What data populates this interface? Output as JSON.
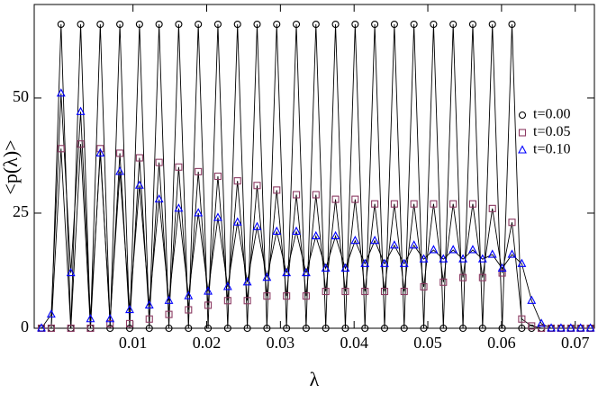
{
  "chart_data": {
    "type": "line",
    "x_label": "λ",
    "y_label": "<p(λ)>",
    "xlim": [
      -0.0034,
      0.0726
    ],
    "ylim": [
      0,
      70.3
    ],
    "xticks": [
      0.01,
      0.02,
      0.03,
      0.04,
      0.05,
      0.06,
      0.07
    ],
    "yticks": [
      0,
      25,
      50
    ],
    "legend": "right",
    "x": [
      -0.00242,
      -0.00109,
      0.00024,
      0.00157,
      0.0029,
      0.00423,
      0.00556,
      0.00689,
      0.00822,
      0.00955,
      0.01088,
      0.01221,
      0.01354,
      0.01487,
      0.0162,
      0.01753,
      0.01886,
      0.02019,
      0.02152,
      0.02285,
      0.02418,
      0.02551,
      0.02684,
      0.02817,
      0.0295,
      0.03083,
      0.03216,
      0.03349,
      0.03482,
      0.03615,
      0.03748,
      0.03881,
      0.04014,
      0.04147,
      0.0428,
      0.04413,
      0.04546,
      0.04679,
      0.04812,
      0.04945,
      0.05078,
      0.05211,
      0.05344,
      0.05477,
      0.0561,
      0.05743,
      0.05876,
      0.06009,
      0.06142,
      0.06275,
      0.06408,
      0.06541,
      0.06674,
      0.06807,
      0.0694,
      0.07073,
      0.07206
    ],
    "series": [
      {
        "name": "t=0.00",
        "color": "#000000",
        "marker": "circle",
        "values": [
          0,
          0,
          66,
          0,
          66,
          0,
          66,
          0,
          66,
          0,
          66,
          0,
          66,
          0,
          66,
          0,
          66,
          0,
          66,
          0,
          66,
          0,
          66,
          0,
          66,
          0,
          66,
          0,
          66,
          0,
          66,
          0,
          66,
          0,
          66,
          0,
          66,
          0,
          66,
          0,
          66,
          0,
          66,
          0,
          66,
          0,
          66,
          0,
          66,
          0,
          0,
          0,
          0,
          0,
          0,
          0,
          0
        ]
      },
      {
        "name": "t=0.05",
        "color": "#8b3a62",
        "marker": "square",
        "values": [
          0,
          0,
          39,
          0,
          40,
          0,
          39,
          1,
          38,
          1,
          37,
          2,
          36,
          3,
          35,
          4,
          34,
          5,
          33,
          6,
          32,
          6,
          31,
          7,
          30,
          7,
          29,
          7,
          29,
          8,
          28,
          8,
          28,
          8,
          27,
          8,
          27,
          8,
          27,
          9,
          27,
          10,
          27,
          11,
          27,
          11,
          26,
          12,
          23,
          2,
          0.5,
          0,
          0,
          0,
          0,
          0,
          0
        ]
      },
      {
        "name": "t=0.10",
        "color": "#0000ff",
        "marker": "triangle",
        "values": [
          0,
          3,
          51,
          12,
          47,
          2,
          38,
          2,
          34,
          4,
          31,
          5,
          28,
          6,
          26,
          7,
          25,
          8,
          24,
          9,
          23,
          10,
          22,
          11,
          21,
          12,
          21,
          12,
          20,
          13,
          20,
          13,
          19,
          14,
          19,
          14,
          18,
          14,
          18,
          15,
          17,
          15,
          17,
          15,
          17,
          15,
          16,
          13,
          16,
          14,
          6,
          1,
          0,
          0,
          0,
          0,
          0
        ]
      }
    ]
  }
}
